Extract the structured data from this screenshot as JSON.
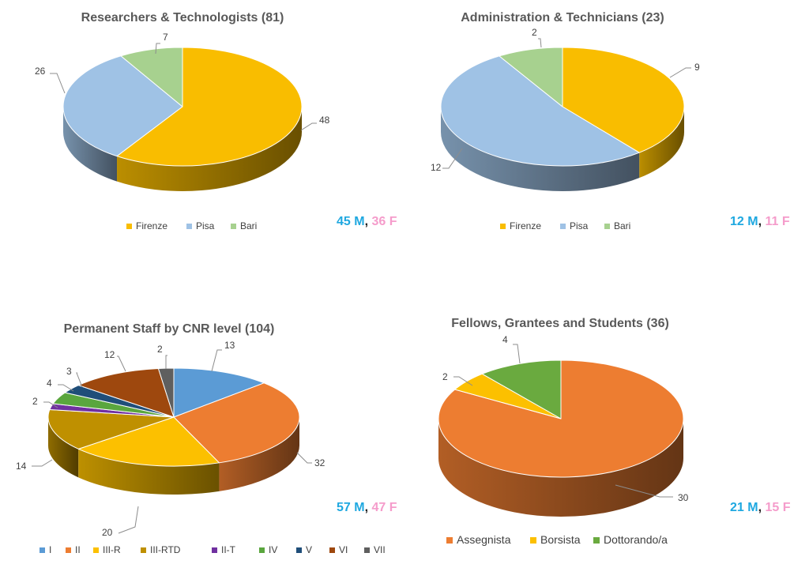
{
  "colors": {
    "male": "#1fa8e0",
    "female": "#f59ccb",
    "label_text": "#404040",
    "leader": "#8c8c8c"
  },
  "chart_data": [
    {
      "type": "pie",
      "style": "3d",
      "title": "Researchers & Technologists (81)",
      "categories": [
        "Firenze",
        "Pisa",
        "Bari"
      ],
      "values": [
        48,
        26,
        7
      ],
      "colors": [
        "#f9bd00",
        "#9fc2e5",
        "#a7d18f"
      ],
      "legend": "bottom",
      "gender": {
        "male": "45 M",
        "female": "36 F"
      }
    },
    {
      "type": "pie",
      "style": "3d",
      "title": "Administration & Technicians (23)",
      "categories": [
        "Firenze",
        "Pisa",
        "Bari"
      ],
      "values": [
        9,
        12,
        2
      ],
      "colors": [
        "#f9bd00",
        "#9fc2e5",
        "#a7d18f"
      ],
      "legend": "bottom",
      "gender": {
        "male": "12 M",
        "female": "11 F"
      }
    },
    {
      "type": "pie",
      "style": "3d",
      "title": "Permanent Staff by CNR level (104)",
      "categories": [
        "I",
        "II",
        "III-R",
        "III-RTD",
        "II-T",
        "IV",
        "V",
        "VI",
        "VII"
      ],
      "values": [
        13,
        32,
        20,
        14,
        2,
        4,
        3,
        12,
        2
      ],
      "colors": [
        "#5b9bd5",
        "#ed7d31",
        "#fcc000",
        "#bf9000",
        "#7030a0",
        "#5aa63e",
        "#1f4e79",
        "#9e480e",
        "#5f5f5f"
      ],
      "legend": "bottom",
      "gender": {
        "male": "57 M",
        "female": "47 F"
      }
    },
    {
      "type": "pie",
      "style": "3d",
      "title": "Fellows, Grantees and Students (36)",
      "categories": [
        "Assegnista",
        "Borsista",
        "Dottorando/a"
      ],
      "values": [
        30,
        2,
        4
      ],
      "colors": [
        "#ed7d31",
        "#fcc000",
        "#6aaa3f"
      ],
      "legend": "bottom",
      "gender": {
        "male": "21 M",
        "female": "15 F"
      }
    }
  ]
}
